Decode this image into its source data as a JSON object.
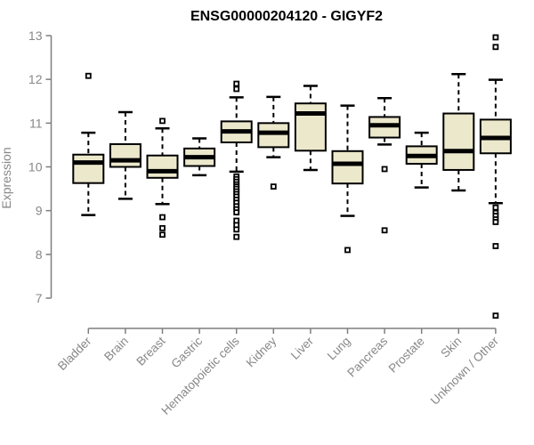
{
  "chart_data": {
    "type": "boxplot",
    "title": "ENSG00000204120 - GIGYF2",
    "xlabel": "",
    "ylabel": "Expression",
    "ylim": [
      6.5,
      13.1
    ],
    "yticks": [
      7,
      8,
      9,
      10,
      11,
      12,
      13
    ],
    "grid": false,
    "legend": false,
    "categories": [
      "Bladder",
      "Brain",
      "Breast",
      "Gastric",
      "Hematopoietic cells",
      "Kidney",
      "Liver",
      "Lung",
      "Pancreas",
      "Prostate",
      "Skin",
      "Unknown / Other"
    ],
    "series": [
      {
        "name": "Bladder",
        "whislo": 8.9,
        "q1": 9.63,
        "med": 10.1,
        "q3": 10.28,
        "whishi": 10.78,
        "outliers": [
          12.08
        ]
      },
      {
        "name": "Brain",
        "whislo": 9.27,
        "q1": 10.0,
        "med": 10.15,
        "q3": 10.52,
        "whishi": 11.25,
        "outliers": []
      },
      {
        "name": "Breast",
        "whislo": 9.15,
        "q1": 9.75,
        "med": 9.9,
        "q3": 10.26,
        "whishi": 10.88,
        "outliers": [
          11.05,
          8.85,
          8.6,
          8.45
        ]
      },
      {
        "name": "Gastric",
        "whislo": 9.81,
        "q1": 10.02,
        "med": 10.22,
        "q3": 10.42,
        "whishi": 10.65,
        "outliers": []
      },
      {
        "name": "Hematopoietic cells",
        "whislo": 9.89,
        "q1": 10.56,
        "med": 10.81,
        "q3": 11.04,
        "whishi": 11.59,
        "outliers": [
          11.9,
          11.78,
          9.78,
          9.72,
          9.66,
          9.6,
          9.55,
          9.5,
          9.44,
          9.38,
          9.32,
          9.25,
          9.18,
          9.1,
          9.03,
          8.96,
          8.77,
          8.67,
          8.57,
          8.4
        ]
      },
      {
        "name": "Kidney",
        "whislo": 10.22,
        "q1": 10.45,
        "med": 10.78,
        "q3": 11.0,
        "whishi": 11.6,
        "outliers": [
          9.55
        ]
      },
      {
        "name": "Liver",
        "whislo": 9.93,
        "q1": 10.37,
        "med": 11.22,
        "q3": 11.45,
        "whishi": 11.85,
        "outliers": []
      },
      {
        "name": "Lung",
        "whislo": 8.88,
        "q1": 9.62,
        "med": 10.07,
        "q3": 10.36,
        "whishi": 11.4,
        "outliers": [
          8.1
        ]
      },
      {
        "name": "Pancreas",
        "whislo": 10.51,
        "q1": 10.67,
        "med": 10.95,
        "q3": 11.14,
        "whishi": 11.57,
        "outliers": [
          9.95,
          8.55
        ]
      },
      {
        "name": "Prostate",
        "whislo": 9.53,
        "q1": 10.07,
        "med": 10.25,
        "q3": 10.47,
        "whishi": 10.78,
        "outliers": []
      },
      {
        "name": "Skin",
        "whislo": 9.46,
        "q1": 9.93,
        "med": 10.36,
        "q3": 11.22,
        "whishi": 12.12,
        "outliers": []
      },
      {
        "name": "Unknown / Other",
        "whislo": 9.17,
        "q1": 10.31,
        "med": 10.66,
        "q3": 11.08,
        "whishi": 11.99,
        "outliers": [
          12.96,
          12.74,
          9.07,
          8.95,
          8.88,
          8.8,
          8.74,
          8.19,
          6.6
        ]
      }
    ],
    "colors": {
      "box_fill": "#ECE8CC",
      "box_stroke": "#000000",
      "median": "#000000",
      "whisker": "#000000",
      "outlier_fill": "#ffffff",
      "outlier_stroke": "#000000",
      "axis": "#7f7f7f",
      "tick_label": "#878787",
      "title": "#000000"
    }
  }
}
